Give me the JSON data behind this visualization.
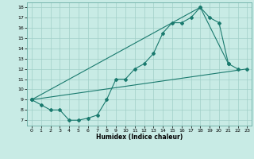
{
  "xlabel": "Humidex (Indice chaleur)",
  "xlim": [
    -0.5,
    23.5
  ],
  "ylim": [
    6.5,
    18.5
  ],
  "yticks": [
    7,
    8,
    9,
    10,
    11,
    12,
    13,
    14,
    15,
    16,
    17,
    18
  ],
  "xticks": [
    0,
    1,
    2,
    3,
    4,
    5,
    6,
    7,
    8,
    9,
    10,
    11,
    12,
    13,
    14,
    15,
    16,
    17,
    18,
    19,
    20,
    21,
    22,
    23
  ],
  "bg_color": "#c8ebe5",
  "grid_color": "#a0cfc8",
  "line_color": "#1a7a6e",
  "line1_x": [
    0,
    1,
    2,
    3,
    4,
    5,
    6,
    7,
    8,
    9,
    10,
    11,
    12,
    13,
    14,
    15,
    16,
    17,
    18,
    19,
    20,
    21,
    22
  ],
  "line1_y": [
    9.0,
    8.5,
    8.0,
    8.0,
    7.0,
    7.0,
    7.2,
    7.5,
    9.0,
    11.0,
    11.0,
    12.0,
    12.5,
    13.5,
    15.5,
    16.5,
    16.5,
    17.0,
    18.0,
    17.0,
    16.5,
    12.5,
    12.0
  ],
  "line2_x": [
    0,
    23
  ],
  "line2_y": [
    9.0,
    12.0
  ],
  "line3_x": [
    0,
    18,
    21
  ],
  "line3_y": [
    9.0,
    18.0,
    12.5
  ]
}
